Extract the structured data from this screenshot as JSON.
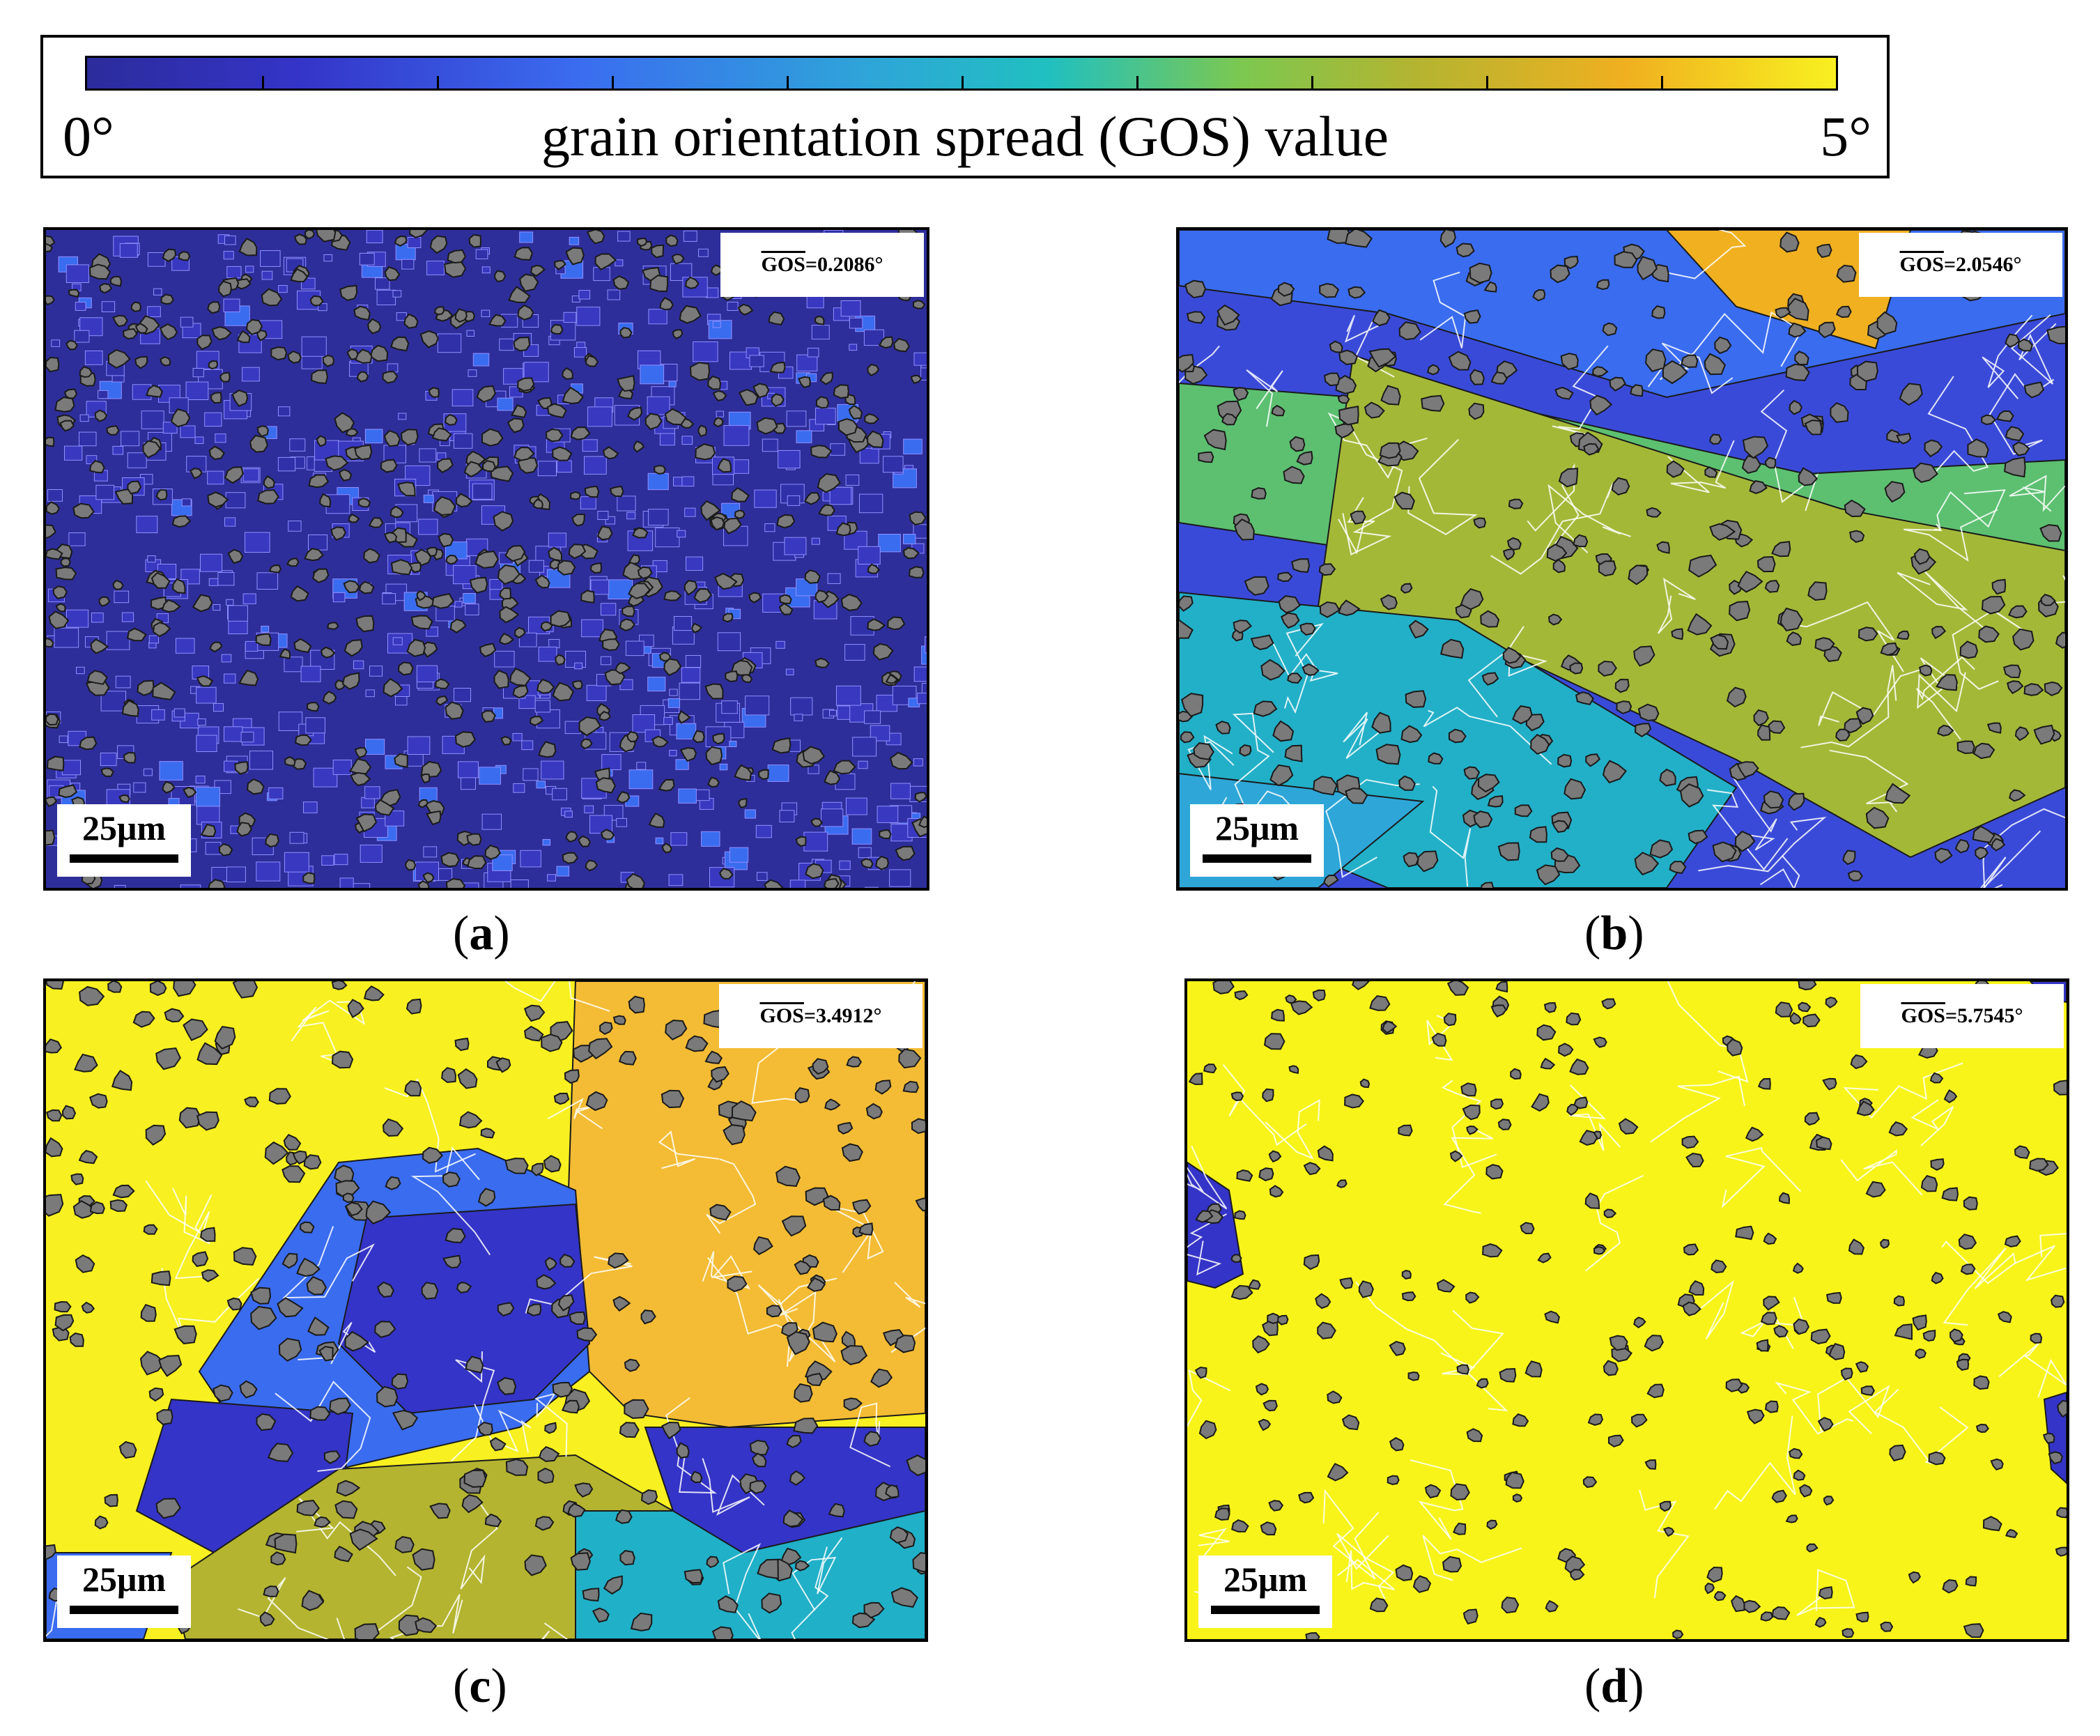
{
  "colorbar": {
    "min_label": "0°",
    "max_label": "5°",
    "title": "grain orientation spread (GOS) value",
    "min_value": 0,
    "max_value": 5,
    "colors": [
      "#2c2c9c",
      "#3434c8",
      "#3a6cf0",
      "#2ea6d8",
      "#20c0c0",
      "#7cc850",
      "#b4b430",
      "#f0b020",
      "#f8f020"
    ]
  },
  "panels": [
    {
      "id": "a",
      "label_open": "(",
      "label_letter": "a",
      "label_close": ")",
      "gos_symbol": "GOS",
      "gos_text": "=0.2086°",
      "gos_value": 0.2086,
      "scale_bar": "25μm"
    },
    {
      "id": "b",
      "label_open": "(",
      "label_letter": "b",
      "label_close": ")",
      "gos_symbol": "GOS",
      "gos_text": "=2.0546°",
      "gos_value": 2.0546,
      "scale_bar": "25μm"
    },
    {
      "id": "c",
      "label_open": "(",
      "label_letter": "c",
      "label_close": ")",
      "gos_symbol": "GOS",
      "gos_text": "=3.4912°",
      "gos_value": 3.4912,
      "scale_bar": "25μm"
    },
    {
      "id": "d",
      "label_open": "(",
      "label_letter": "d",
      "label_close": ")",
      "gos_symbol": "GOS",
      "gos_text": "=5.7545°",
      "gos_value": 5.7545,
      "scale_bar": "25μm"
    }
  ],
  "map_colors": {
    "particle": "#7a7a7a",
    "boundary": "#1a1a1a",
    "subgrain_line": "#ffffff"
  }
}
